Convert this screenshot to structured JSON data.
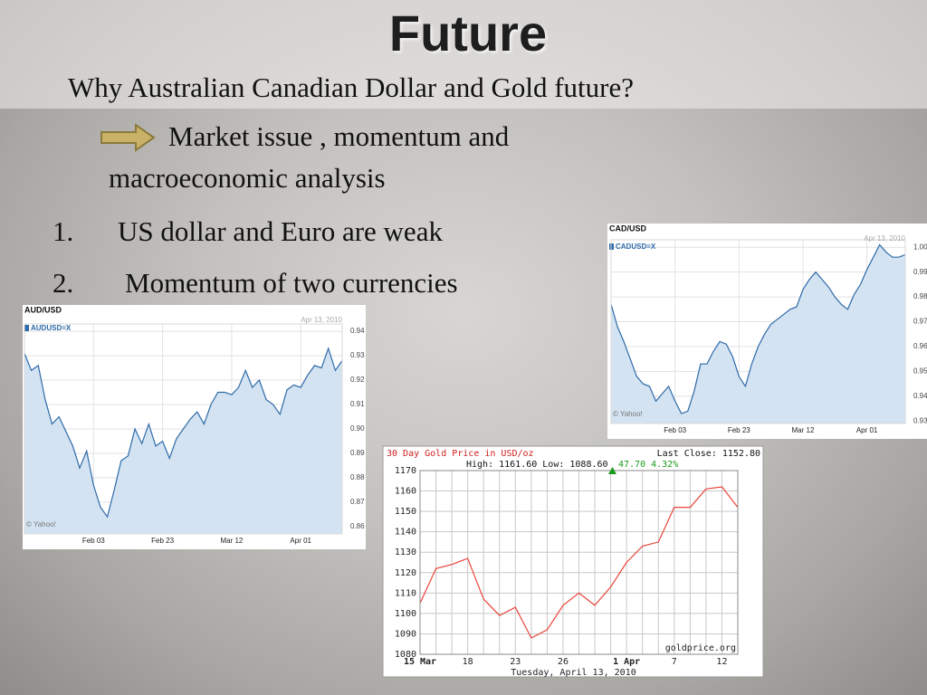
{
  "slide": {
    "title": "Future",
    "question": "Why Australian Canadian Dollar and Gold future?",
    "point": "Market issue , momentum and macroeconomic analysis",
    "list": [
      {
        "number": "1.",
        "text": "US dollar and Euro are weak"
      },
      {
        "number": "2.",
        "text": "Momentum of two currencies"
      }
    ]
  },
  "chart_data": [
    {
      "type": "area",
      "title": "AUD/USD",
      "date_label": "Apr 13, 2010",
      "source": "© Yahoo!",
      "categories": [
        null,
        null,
        null,
        null,
        null,
        null,
        null,
        null,
        null,
        null,
        "Feb 03",
        null,
        null,
        null,
        null,
        null,
        null,
        null,
        null,
        null,
        "Feb 23",
        null,
        null,
        null,
        null,
        null,
        null,
        null,
        null,
        null,
        "Mar 12",
        null,
        null,
        null,
        null,
        null,
        null,
        null,
        null,
        null,
        "Apr 01",
        null,
        null,
        null,
        null,
        null,
        null
      ],
      "series": [
        {
          "name": "AUDUSD=X",
          "color": "#2f6aa8",
          "values": [
            0.931,
            0.924,
            0.926,
            0.912,
            0.902,
            0.905,
            0.899,
            0.893,
            0.884,
            0.891,
            0.877,
            0.868,
            0.864,
            0.875,
            0.887,
            0.889,
            0.9,
            0.894,
            0.902,
            0.893,
            0.895,
            0.888,
            0.896,
            0.9,
            0.904,
            0.907,
            0.902,
            0.91,
            0.915,
            0.915,
            0.914,
            0.917,
            0.924,
            0.917,
            0.92,
            0.912,
            0.91,
            0.906,
            0.916,
            0.918,
            0.917,
            0.922,
            0.926,
            0.925,
            0.933,
            0.924,
            0.928
          ]
        }
      ],
      "ylim": [
        0.857,
        0.943
      ],
      "yticks": [
        0.86,
        0.87,
        0.88,
        0.89,
        {
          "value": 0.9,
          "label": "0.90"
        },
        0.91,
        0.92,
        0.93,
        0.94
      ],
      "grid": true
    },
    {
      "type": "area",
      "title": "CAD/USD",
      "date_label": "Apr 13, 2010",
      "source": "© Yahoo!",
      "categories": [
        null,
        null,
        null,
        null,
        null,
        null,
        null,
        null,
        null,
        null,
        "Feb 03",
        null,
        null,
        null,
        null,
        null,
        null,
        null,
        null,
        null,
        "Feb 23",
        null,
        null,
        null,
        null,
        null,
        null,
        null,
        null,
        null,
        "Mar 12",
        null,
        null,
        null,
        null,
        null,
        null,
        null,
        null,
        null,
        "Apr 01",
        null,
        null,
        null,
        null,
        null,
        null
      ],
      "series": [
        {
          "name": "CADUSD=X",
          "color": "#2f6aa8",
          "values": [
            0.977,
            0.968,
            0.962,
            0.955,
            0.948,
            0.945,
            0.944,
            0.938,
            0.941,
            0.944,
            0.938,
            0.933,
            0.934,
            0.942,
            0.953,
            0.953,
            0.958,
            0.962,
            0.961,
            0.956,
            0.948,
            0.944,
            0.953,
            0.96,
            0.965,
            0.969,
            0.971,
            0.973,
            0.975,
            0.976,
            0.983,
            0.987,
            0.99,
            0.987,
            0.984,
            0.98,
            0.977,
            0.975,
            0.981,
            0.985,
            0.991,
            0.996,
            1.001,
            0.998,
            0.996,
            0.996,
            0.997
          ]
        }
      ],
      "ylim": [
        0.929,
        1.003
      ],
      "yticks": [
        0.93,
        0.94,
        0.95,
        0.96,
        0.97,
        0.98,
        0.99,
        {
          "value": 1,
          "label": "1.00"
        }
      ],
      "grid": true
    },
    {
      "type": "line",
      "title": "30 Day Gold Price in USD/oz",
      "last_close": "Last Close: 1152.80",
      "stats": "High: 1161.60 Low: 1088.60",
      "change": "47.70 4.32%",
      "change_color": "#1a9a1a",
      "source": "goldprice.org",
      "x_title": "Tuesday, April 13, 2010",
      "categories": [
        "15 Mar",
        null,
        null,
        "18",
        null,
        null,
        "23",
        null,
        null,
        "26",
        null,
        null,
        null,
        "1 Apr",
        null,
        null,
        "7",
        null,
        null,
        "12",
        null
      ],
      "series": [
        {
          "name": "Gold",
          "color": "#e8443a",
          "values": [
            1105,
            1122,
            1124,
            1127,
            1107,
            1099,
            1103,
            1088,
            1092,
            1104,
            1110,
            1104,
            1113,
            1125,
            1133,
            1135,
            1152,
            1152,
            1161,
            1162,
            1152
          ]
        }
      ],
      "ylim": [
        1080,
        1170
      ],
      "yticks": [
        1080,
        1090,
        1100,
        1110,
        1120,
        1130,
        1140,
        1150,
        1160,
        1170
      ],
      "grid": true
    }
  ]
}
